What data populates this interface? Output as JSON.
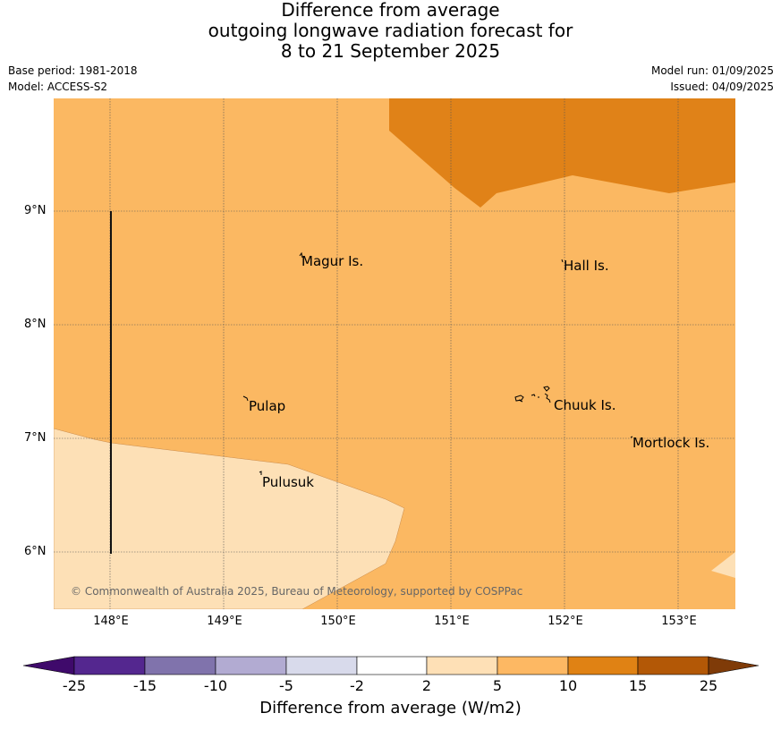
{
  "title": {
    "line1": "Difference from average",
    "line2": "outgoing longwave radiation forecast for",
    "line3": "8 to 21 September 2025"
  },
  "meta": {
    "base_period": "Base period: 1981-2018",
    "model": "Model: ACCESS-S2",
    "model_run": "Model run: 01/09/2025",
    "issued": "Issued: 04/09/2025"
  },
  "map": {
    "lat_labels": [
      "9°N",
      "8°N",
      "7°N",
      "6°N"
    ],
    "lon_labels": [
      "148°E",
      "149°E",
      "150°E",
      "151°E",
      "152°E",
      "153°E"
    ],
    "places": [
      "Magur Is.",
      "Hall Is.",
      "Pulap",
      "Chuuk Is.",
      "Mortlock Is.",
      "Pulusuk"
    ],
    "copyright": "© Commonwealth of Australia 2025, Bureau of Meteorology, supported by COSPPac",
    "colors": {
      "band_2_5": "#fde0b6",
      "band_5_10": "#fbb862",
      "band_10_15": "#e08218"
    }
  },
  "colorbar": {
    "ticks": [
      "-25",
      "-15",
      "-10",
      "-5",
      "-2",
      "2",
      "5",
      "10",
      "15",
      "25"
    ],
    "colors": [
      "#3f0a6b",
      "#54278f",
      "#8073ac",
      "#b2abd2",
      "#d8daeb",
      "#ffffff",
      "#fee0b6",
      "#fdb863",
      "#e08214",
      "#b35806",
      "#7f3b08"
    ],
    "label": "Difference from average (W/m2)"
  }
}
